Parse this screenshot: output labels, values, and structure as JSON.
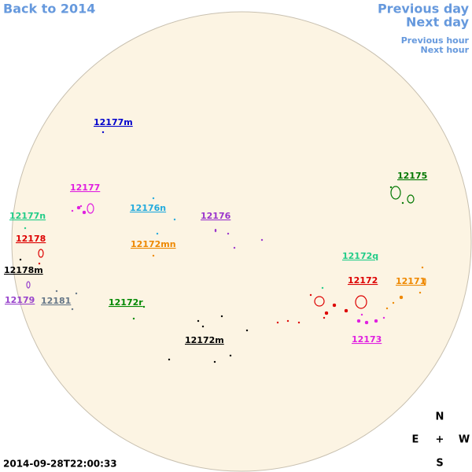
{
  "nav": {
    "back": "Back to 2014",
    "previous_day": "Previous day",
    "next_day": "Next day",
    "previous_hour": "Previous hour",
    "next_hour": "Next hour"
  },
  "regions": [
    {
      "label": "12177m",
      "color": "#0000cc"
    },
    {
      "label": "12177",
      "color": "#e020e0"
    },
    {
      "label": "12177n",
      "color": "#22cc88"
    },
    {
      "label": "12176n",
      "color": "#22aadd"
    },
    {
      "label": "12176",
      "color": "#9933cc"
    },
    {
      "label": "12172mn",
      "color": "#ee8800"
    },
    {
      "label": "12178",
      "color": "#dd0000"
    },
    {
      "label": "12178m",
      "color": "#000000"
    },
    {
      "label": "12179",
      "color": "#9944cc"
    },
    {
      "label": "12181",
      "color": "#667788"
    },
    {
      "label": "12172r",
      "color": "#008800"
    },
    {
      "label": "12172m",
      "color": "#000000"
    },
    {
      "label": "12175",
      "color": "#007700"
    },
    {
      "label": "12172q",
      "color": "#22cc88"
    },
    {
      "label": "12172",
      "color": "#dd0000"
    },
    {
      "label": "12171",
      "color": "#ee8800"
    },
    {
      "label": "12173",
      "color": "#e020e0"
    }
  ],
  "timestamp": "2014-09-28T22:00:33",
  "compass": {
    "north": "N",
    "east": "E",
    "center": "+",
    "west": "W",
    "south": "S"
  }
}
